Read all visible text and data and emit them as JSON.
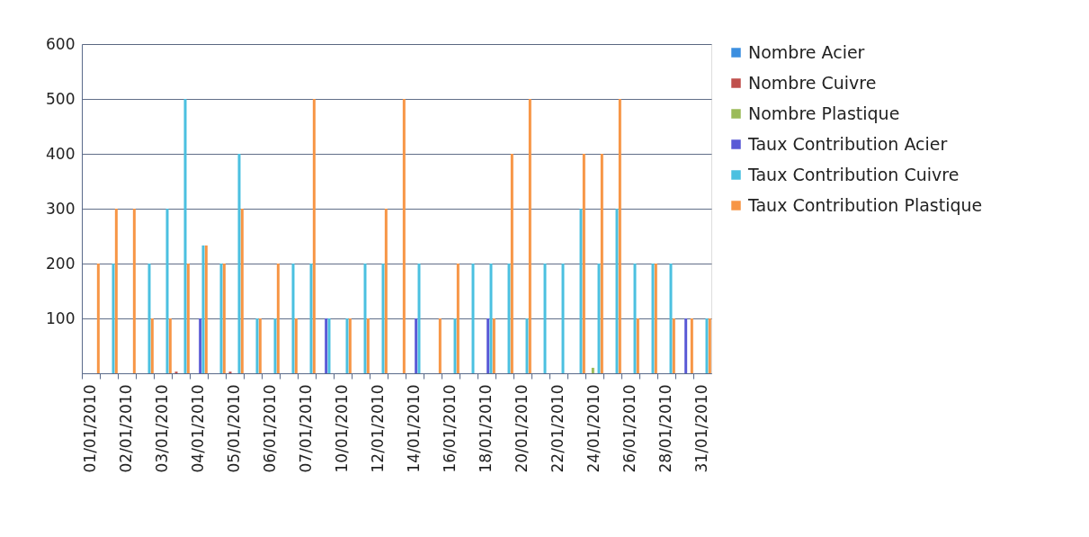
{
  "chart_data": {
    "type": "bar",
    "categories": [
      "01/01/2010",
      null,
      "02/01/2010",
      null,
      "03/01/2010",
      null,
      "04/01/2010",
      null,
      "05/01/2010",
      null,
      "06/01/2010",
      null,
      "07/01/2010",
      null,
      "10/01/2010",
      null,
      "12/01/2010",
      null,
      "14/01/2010",
      null,
      "16/01/2010",
      null,
      "18/01/2010",
      null,
      "20/01/2010",
      null,
      "22/01/2010",
      null,
      "24/01/2010",
      null,
      "26/01/2010",
      null,
      "28/01/2010",
      null,
      "31/01/2010"
    ],
    "series": [
      {
        "name": "Nombre Acier",
        "color": "#3c8fe0",
        "values": [
          0,
          0,
          0,
          0,
          0,
          0,
          0,
          0,
          0,
          0,
          0,
          0,
          0,
          0,
          0,
          0,
          0,
          0,
          0,
          0,
          0,
          0,
          0,
          0,
          0,
          0,
          0,
          0,
          0,
          0,
          0,
          0,
          0,
          0,
          0
        ]
      },
      {
        "name": "Nombre Cuivre",
        "color": "#c0504d",
        "values": [
          0,
          0,
          0,
          0,
          0,
          3,
          0,
          0,
          3,
          0,
          0,
          0,
          0,
          0,
          0,
          0,
          0,
          0,
          0,
          0,
          0,
          0,
          0,
          0,
          0,
          0,
          0,
          0,
          0,
          0,
          0,
          0,
          0,
          0,
          0
        ]
      },
      {
        "name": "Nombre Plastique",
        "color": "#9bbb59",
        "values": [
          0,
          0,
          0,
          0,
          0,
          0,
          0,
          0,
          0,
          0,
          0,
          0,
          0,
          0,
          0,
          0,
          0,
          0,
          0,
          0,
          0,
          0,
          0,
          0,
          0,
          0,
          0,
          0,
          10,
          0,
          0,
          0,
          0,
          0,
          0
        ]
      },
      {
        "name": "Taux Contribution Acier",
        "color": "#5a5ad6",
        "values": [
          0,
          0,
          0,
          0,
          0,
          0,
          100,
          0,
          0,
          0,
          0,
          0,
          0,
          100,
          0,
          0,
          0,
          0,
          100,
          0,
          0,
          0,
          100,
          0,
          0,
          0,
          0,
          0,
          0,
          0,
          0,
          0,
          0,
          100,
          0
        ]
      },
      {
        "name": "Taux Contribution Cuivre",
        "color": "#4bc0e0",
        "values": [
          0,
          200,
          0,
          200,
          300,
          500,
          233,
          200,
          400,
          100,
          100,
          200,
          200,
          100,
          100,
          200,
          200,
          0,
          200,
          0,
          100,
          200,
          200,
          200,
          100,
          200,
          200,
          300,
          200,
          300,
          200,
          200,
          200,
          0,
          100
        ]
      },
      {
        "name": "Taux Contribution Plastique",
        "color": "#f79646",
        "values": [
          200,
          300,
          300,
          100,
          100,
          200,
          233,
          200,
          300,
          100,
          200,
          100,
          500,
          0,
          100,
          100,
          300,
          500,
          0,
          100,
          200,
          0,
          100,
          400,
          500,
          0,
          0,
          400,
          400,
          500,
          100,
          200,
          100,
          100,
          100
        ]
      }
    ],
    "ylim": [
      0,
      600
    ],
    "yticks": [
      {
        "value": 0,
        "label": null
      },
      100,
      200,
      300,
      400,
      500,
      600
    ],
    "grid": "y",
    "legend": "right"
  }
}
